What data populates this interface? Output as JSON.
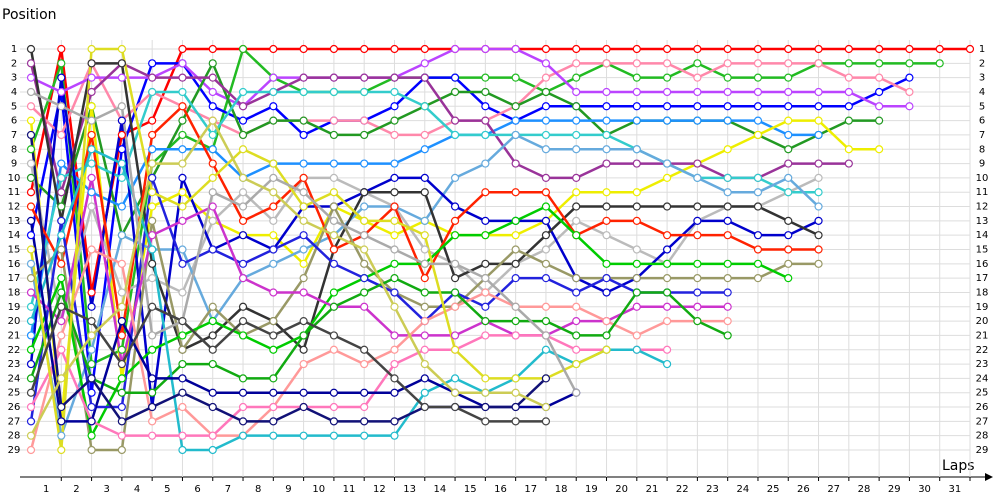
{
  "chart_data": {
    "type": "line",
    "y_label": "Position",
    "x_label": "Laps",
    "x": [
      0,
      1,
      2,
      3,
      4,
      5,
      6,
      7,
      8,
      9,
      10,
      11,
      12,
      13,
      14,
      15,
      16,
      17,
      18,
      19,
      20,
      21,
      22,
      23,
      24,
      25,
      26,
      27,
      28,
      29,
      30,
      31
    ],
    "xlim": [
      0,
      31
    ],
    "xticks": [
      1,
      2,
      3,
      4,
      5,
      6,
      7,
      8,
      9,
      10,
      11,
      12,
      13,
      14,
      15,
      16,
      17,
      18,
      19,
      20,
      21,
      22,
      23,
      24,
      25,
      26,
      27,
      28,
      29,
      30,
      31
    ],
    "ylim": [
      29,
      1
    ],
    "yticks": [
      1,
      2,
      3,
      4,
      5,
      6,
      7,
      8,
      9,
      10,
      11,
      12,
      13,
      14,
      15,
      16,
      17,
      18,
      19,
      20,
      21,
      22,
      23,
      24,
      25,
      26,
      27,
      28,
      29
    ],
    "grid": true,
    "series": [
      {
        "color": "#ff0000",
        "values": [
          11,
          1,
          18,
          7,
          6,
          1,
          1,
          1,
          1,
          1,
          1,
          1,
          1,
          1,
          1,
          1,
          1,
          1,
          1,
          1,
          1,
          1,
          1,
          1,
          1,
          1,
          1,
          1,
          1,
          1,
          1,
          1
        ]
      },
      {
        "color": "#22bb22",
        "values": [
          8,
          2,
          23,
          22,
          9,
          7,
          8,
          1,
          3,
          4,
          4,
          4,
          3,
          3,
          3,
          3,
          3,
          4,
          3,
          2,
          3,
          3,
          2,
          3,
          3,
          3,
          2,
          2,
          2,
          2,
          2,
          null
        ]
      },
      {
        "color": "#0000ff",
        "values": [
          14,
          4,
          25,
          8,
          2,
          2,
          5,
          6,
          5,
          7,
          6,
          6,
          5,
          3,
          3,
          5,
          6,
          5,
          5,
          5,
          5,
          5,
          5,
          5,
          5,
          5,
          5,
          5,
          4,
          3,
          null,
          null
        ]
      },
      {
        "color": "#ff88aa",
        "values": [
          5,
          7,
          2,
          6,
          4,
          5,
          6,
          7,
          6,
          6,
          6,
          6,
          7,
          7,
          6,
          6,
          5,
          3,
          2,
          2,
          2,
          2,
          3,
          2,
          2,
          2,
          2,
          3,
          3,
          4,
          null,
          null
        ]
      },
      {
        "color": "#bb44ff",
        "values": [
          3,
          4,
          3,
          3,
          3,
          2,
          4,
          5,
          3,
          3,
          3,
          3,
          3,
          2,
          1,
          1,
          1,
          2,
          4,
          4,
          4,
          4,
          4,
          4,
          4,
          4,
          4,
          4,
          5,
          5,
          null,
          null
        ]
      },
      {
        "color": "#229922",
        "values": [
          10,
          12,
          5,
          14,
          10,
          6,
          2,
          7,
          6,
          6,
          7,
          7,
          6,
          5,
          4,
          4,
          5,
          4,
          5,
          7,
          6,
          6,
          6,
          6,
          7,
          8,
          7,
          6,
          6,
          null,
          null,
          null
        ]
      },
      {
        "color": "#1e90ff",
        "values": [
          21,
          9,
          11,
          12,
          8,
          8,
          8,
          10,
          9,
          9,
          9,
          9,
          9,
          8,
          7,
          7,
          6,
          6,
          6,
          6,
          6,
          6,
          6,
          6,
          6,
          7,
          7,
          null,
          null,
          null,
          null,
          null
        ]
      },
      {
        "color": "#eeee00",
        "values": [
          6,
          27,
          5,
          24,
          12,
          11,
          13,
          14,
          14,
          16,
          12,
          13,
          14,
          13,
          14,
          14,
          14,
          13,
          11,
          11,
          11,
          10,
          9,
          8,
          7,
          6,
          6,
          8,
          8,
          null,
          null,
          null
        ]
      },
      {
        "color": "#993399",
        "values": [
          2,
          11,
          4,
          2,
          3,
          3,
          3,
          5,
          4,
          3,
          3,
          3,
          3,
          3,
          6,
          6,
          9,
          10,
          10,
          9,
          9,
          9,
          9,
          10,
          10,
          9,
          9,
          9,
          null,
          null,
          null,
          null
        ]
      },
      {
        "color": "#bbbbbb",
        "values": [
          9,
          20,
          12,
          18,
          17,
          18,
          13,
          11,
          13,
          10,
          10,
          11,
          12,
          15,
          16,
          18,
          16,
          15,
          13,
          14,
          15,
          16,
          13,
          12,
          12,
          11,
          10,
          null,
          null,
          null,
          null,
          null
        ]
      },
      {
        "color": "#33cccc",
        "values": [
          19,
          10,
          9,
          10,
          4,
          4,
          7,
          4,
          4,
          4,
          4,
          4,
          4,
          5,
          7,
          7,
          7,
          7,
          7,
          7,
          8,
          9,
          10,
          10,
          10,
          11,
          11,
          null,
          null,
          null,
          null,
          null
        ]
      },
      {
        "color": "#66aadd",
        "values": [
          16,
          28,
          22,
          14,
          15,
          15,
          20,
          17,
          16,
          15,
          14,
          12,
          12,
          13,
          10,
          9,
          7,
          8,
          8,
          8,
          8,
          9,
          10,
          11,
          11,
          10,
          12,
          null,
          null,
          null,
          null,
          null
        ]
      },
      {
        "color": "#0000cc",
        "values": [
          23,
          3,
          19,
          6,
          26,
          10,
          15,
          14,
          15,
          12,
          12,
          11,
          10,
          10,
          12,
          13,
          13,
          13,
          17,
          18,
          17,
          15,
          13,
          13,
          14,
          14,
          13,
          null,
          null,
          null,
          null,
          null
        ]
      },
      {
        "color": "#333333",
        "values": [
          1,
          13,
          2,
          2,
          16,
          22,
          21,
          19,
          20,
          22,
          15,
          11,
          11,
          11,
          17,
          16,
          16,
          14,
          12,
          12,
          12,
          12,
          12,
          12,
          12,
          13,
          14,
          null,
          null,
          null,
          null,
          null
        ]
      },
      {
        "color": "#ff2200",
        "values": [
          12,
          16,
          7,
          21,
          7,
          5,
          9,
          13,
          12,
          10,
          15,
          14,
          12,
          17,
          13,
          11,
          11,
          11,
          14,
          13,
          13,
          14,
          14,
          14,
          15,
          15,
          15,
          null,
          null,
          null,
          null,
          null
        ]
      },
      {
        "color": "#999966",
        "values": [
          17,
          15,
          29,
          29,
          13,
          22,
          19,
          21,
          20,
          17,
          12,
          16,
          18,
          19,
          19,
          17,
          15,
          16,
          17,
          17,
          17,
          17,
          17,
          17,
          17,
          16,
          16,
          null,
          null,
          null,
          null,
          null
        ]
      },
      {
        "color": "#00cc00",
        "values": [
          22,
          17,
          28,
          24,
          22,
          21,
          20,
          21,
          22,
          21,
          18,
          17,
          16,
          16,
          14,
          14,
          13,
          12,
          14,
          16,
          16,
          16,
          16,
          16,
          16,
          17,
          null,
          null,
          null,
          null,
          null,
          null
        ]
      },
      {
        "color": "#2222dd",
        "values": [
          27,
          13,
          26,
          26,
          10,
          16,
          15,
          16,
          15,
          14,
          16,
          17,
          18,
          20,
          18,
          19,
          17,
          17,
          18,
          17,
          18,
          18,
          18,
          18,
          null,
          null,
          null,
          null,
          null,
          null,
          null,
          null
        ]
      },
      {
        "color": "#cc33cc",
        "values": [
          18,
          20,
          10,
          23,
          14,
          13,
          12,
          17,
          18,
          18,
          19,
          19,
          21,
          21,
          21,
          20,
          21,
          21,
          20,
          20,
          19,
          19,
          19,
          19,
          null,
          null,
          null,
          null,
          null,
          null,
          null,
          null
        ]
      },
      {
        "color": "#ff9999",
        "values": [
          29,
          21,
          15,
          16,
          27,
          26,
          28,
          28,
          26,
          23,
          22,
          23,
          22,
          20,
          19,
          18,
          19,
          19,
          19,
          20,
          21,
          20,
          20,
          20,
          null,
          null,
          null,
          null,
          null,
          null,
          null,
          null
        ]
      },
      {
        "color": "#11aa11",
        "values": [
          24,
          18,
          24,
          25,
          25,
          23,
          23,
          24,
          24,
          21,
          19,
          18,
          17,
          18,
          18,
          20,
          20,
          20,
          21,
          21,
          18,
          18,
          20,
          21,
          null,
          null,
          null,
          null,
          null,
          null,
          null,
          null
        ]
      },
      {
        "color": "#ff77bb",
        "values": [
          26,
          22,
          27,
          28,
          28,
          28,
          28,
          26,
          26,
          26,
          26,
          26,
          23,
          22,
          22,
          21,
          21,
          21,
          22,
          22,
          22,
          22,
          null,
          null,
          null,
          null,
          null,
          null,
          null,
          null,
          null,
          null
        ]
      },
      {
        "color": "#22bbcc",
        "values": [
          20,
          14,
          8,
          9,
          15,
          29,
          29,
          28,
          28,
          28,
          28,
          28,
          28,
          25,
          24,
          25,
          24,
          22,
          23,
          22,
          22,
          23,
          null,
          null,
          null,
          null,
          null,
          null,
          null,
          null,
          null,
          null
        ]
      },
      {
        "color": "#dddd22",
        "values": [
          15,
          29,
          1,
          1,
          11,
          12,
          10,
          8,
          9,
          12,
          11,
          13,
          13,
          14,
          22,
          24,
          24,
          24,
          23,
          22,
          null,
          null,
          null,
          null,
          null,
          null,
          null,
          null,
          null,
          null,
          null,
          null
        ]
      },
      {
        "color": "#000099",
        "values": [
          13,
          27,
          27,
          20,
          24,
          24,
          25,
          25,
          25,
          25,
          25,
          25,
          25,
          24,
          25,
          26,
          26,
          26,
          25,
          null,
          null,
          null,
          null,
          null,
          null,
          null,
          null,
          null,
          null,
          null,
          null,
          null
        ]
      },
      {
        "color": "#111177",
        "values": [
          7,
          26,
          24,
          27,
          26,
          25,
          26,
          27,
          27,
          26,
          27,
          27,
          27,
          26,
          26,
          26,
          26,
          24,
          null,
          null,
          null,
          null,
          null,
          null,
          null,
          null,
          null,
          null,
          null,
          null,
          null,
          null
        ]
      },
      {
        "color": "#aaaaaa",
        "values": [
          4,
          5,
          6,
          5,
          21,
          20,
          11,
          12,
          10,
          11,
          13,
          14,
          15,
          16,
          16,
          17,
          19,
          21,
          25,
          null,
          null,
          null,
          null,
          null,
          null,
          null,
          null,
          null,
          null,
          null,
          null,
          null
        ]
      },
      {
        "color": "#444444",
        "values": [
          25,
          19,
          20,
          23,
          19,
          20,
          22,
          20,
          21,
          20,
          21,
          22,
          24,
          26,
          26,
          27,
          27,
          27,
          null,
          null,
          null,
          null,
          null,
          null,
          null,
          null,
          null,
          null,
          null,
          null,
          null,
          null
        ]
      },
      {
        "color": "#cccc55",
        "values": [
          28,
          24,
          21,
          19,
          9,
          9,
          6,
          10,
          11,
          13,
          14,
          15,
          19,
          23,
          25,
          25,
          25,
          26,
          null,
          null,
          null,
          null,
          null,
          null,
          null,
          null,
          null,
          null,
          null,
          null,
          null,
          null
        ]
      }
    ]
  }
}
